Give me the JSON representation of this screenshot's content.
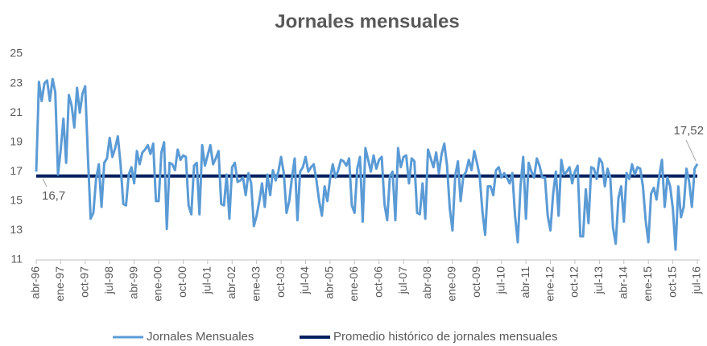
{
  "chart_data": {
    "type": "line",
    "title": "Jornales mensuales",
    "categories": [
      "abr-96",
      null,
      null,
      null,
      null,
      null,
      null,
      null,
      null,
      "ene-97",
      null,
      null,
      null,
      null,
      null,
      null,
      null,
      null,
      "oct-97",
      null,
      null,
      null,
      null,
      null,
      null,
      null,
      null,
      "jul-98",
      null,
      null,
      null,
      null,
      null,
      null,
      null,
      null,
      "abr-99",
      null,
      null,
      null,
      null,
      null,
      null,
      null,
      null,
      "ene-00",
      null,
      null,
      null,
      null,
      null,
      null,
      null,
      null,
      "oct-00",
      null,
      null,
      null,
      null,
      null,
      null,
      null,
      null,
      "jul-01",
      null,
      null,
      null,
      null,
      null,
      null,
      null,
      null,
      "abr-02",
      null,
      null,
      null,
      null,
      null,
      null,
      null,
      null,
      "ene-03",
      null,
      null,
      null,
      null,
      null,
      null,
      null,
      null,
      "oct-03",
      null,
      null,
      null,
      null,
      null,
      null,
      null,
      null,
      "jul-04",
      null,
      null,
      null,
      null,
      null,
      null,
      null,
      null,
      "abr-05",
      null,
      null,
      null,
      null,
      null,
      null,
      null,
      null,
      "ene-06",
      null,
      null,
      null,
      null,
      null,
      null,
      null,
      null,
      "oct-06",
      null,
      null,
      null,
      null,
      null,
      null,
      null,
      null,
      "jul-07",
      null,
      null,
      null,
      null,
      null,
      null,
      null,
      null,
      "abr-08",
      null,
      null,
      null,
      null,
      null,
      null,
      null,
      null,
      "ene-09",
      null,
      null,
      null,
      null,
      null,
      null,
      null,
      null,
      "oct-09",
      null,
      null,
      null,
      null,
      null,
      null,
      null,
      null,
      "jul-10",
      null,
      null,
      null,
      null,
      null,
      null,
      null,
      null,
      "abr-11",
      null,
      null,
      null,
      null,
      null,
      null,
      null,
      null,
      "ene-12",
      null,
      null,
      null,
      null,
      null,
      null,
      null,
      null,
      "oct-12",
      null,
      null,
      null,
      null,
      null,
      null,
      null,
      null,
      "jul-13",
      null,
      null,
      null,
      null,
      null,
      null,
      null,
      null,
      "abr-14",
      null,
      null,
      null,
      null,
      null,
      null,
      null,
      null,
      "ene-15",
      null,
      null,
      null,
      null,
      null,
      null,
      null,
      null,
      "oct-15",
      null,
      null,
      null,
      null,
      null,
      null,
      null,
      null,
      "jul-16"
    ],
    "series": [
      {
        "name": "Jornales Mensuales",
        "color": "#5b9bd5",
        "end_label": "17,52",
        "values": [
          17.0,
          23.1,
          21.8,
          23.0,
          23.2,
          21.8,
          23.3,
          22.4,
          16.8,
          18.5,
          20.6,
          17.6,
          22.2,
          21.5,
          20.0,
          22.7,
          21.0,
          22.3,
          22.8,
          18.0,
          13.8,
          14.2,
          16.5,
          17.5,
          14.6,
          17.6,
          17.9,
          19.3,
          18.0,
          18.6,
          19.4,
          17.5,
          14.8,
          14.7,
          16.8,
          17.3,
          16.2,
          18.4,
          17.5,
          18.3,
          18.5,
          18.8,
          18.2,
          18.9,
          15.0,
          15.0,
          18.3,
          19.0,
          13.1,
          17.6,
          17.5,
          17.1,
          18.5,
          17.8,
          18.1,
          18.0,
          14.7,
          14.1,
          17.4,
          17.6,
          14.1,
          18.8,
          17.4,
          18.1,
          18.8,
          17.5,
          17.9,
          18.4,
          14.8,
          14.7,
          16.8,
          13.8,
          17.3,
          17.6,
          16.3,
          16.4,
          16.6,
          15.4,
          16.9,
          16.2,
          13.3,
          14.0,
          15.0,
          16.2,
          14.6,
          16.8,
          15.4,
          17.1,
          16.4,
          17.0,
          18.0,
          16.9,
          14.2,
          15.0,
          16.6,
          17.9,
          13.7,
          17.0,
          17.3,
          18.0,
          17.0,
          17.3,
          17.5,
          16.4,
          15.0,
          14.0,
          16.0,
          15.0,
          16.5,
          17.5,
          16.6,
          17.1,
          17.8,
          17.7,
          17.4,
          17.9,
          14.7,
          14.2,
          17.2,
          18.0,
          13.6,
          18.6,
          17.8,
          17.0,
          18.1,
          17.2,
          17.8,
          18.0,
          14.8,
          13.7,
          16.7,
          17.0,
          13.7,
          18.6,
          17.3,
          18.0,
          18.1,
          16.2,
          17.9,
          17.7,
          14.2,
          14.1,
          16.2,
          13.8,
          18.5,
          17.9,
          17.3,
          18.3,
          16.9,
          18.2,
          18.9,
          17.4,
          14.5,
          13.0,
          16.7,
          17.7,
          15.0,
          16.7,
          17.0,
          17.8,
          17.1,
          18.4,
          17.6,
          16.7,
          14.3,
          12.7,
          16.0,
          16.0,
          15.4,
          17.1,
          17.3,
          16.6,
          16.9,
          16.6,
          16.2,
          16.9,
          14.0,
          12.2,
          16.0,
          18.0,
          13.8,
          17.6,
          17.0,
          16.6,
          17.9,
          17.4,
          16.6,
          16.6,
          14.0,
          13.0,
          15.5,
          17.0,
          14.0,
          17.8,
          16.8,
          17.0,
          17.3,
          16.2,
          17.0,
          17.4,
          12.6,
          12.6,
          15.8,
          13.5,
          17.3,
          17.2,
          16.5,
          17.9,
          17.6,
          16.0,
          17.2,
          16.6,
          13.2,
          12.1,
          15.2,
          16.0,
          13.6,
          16.9,
          16.5,
          17.5,
          16.8,
          17.3,
          17.2,
          16.0,
          13.7,
          12.2,
          15.5,
          15.9,
          15.1,
          16.7,
          17.8,
          14.6,
          16.6,
          16.0,
          14.5,
          11.7,
          16.0,
          13.9,
          14.6,
          17.2,
          16.3,
          14.6,
          17.2,
          17.52
        ]
      }
    ],
    "reference_lines": [
      {
        "name": "Promedio histórico de jornales mensuales",
        "value": 16.7,
        "label": "16,7",
        "color": "#002060"
      }
    ],
    "ylim": [
      11,
      25
    ],
    "yticks": [
      11,
      13,
      15,
      17,
      19,
      21,
      23,
      25
    ],
    "grid": false
  }
}
